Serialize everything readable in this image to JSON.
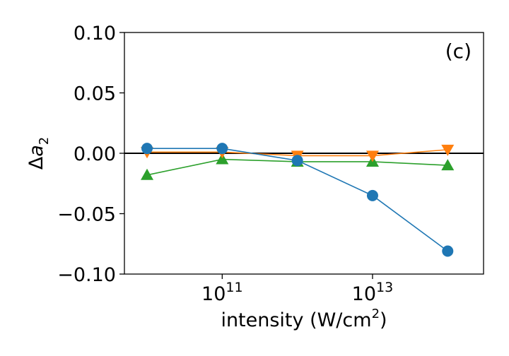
{
  "chart_data": {
    "type": "line",
    "panel_label": "(c)",
    "xlabel": {
      "text": "intensity (W/cm",
      "sup": "2",
      "tail": ")"
    },
    "ylabel": {
      "delta": "Δ",
      "var": "a",
      "sub": "2"
    },
    "xscale": "log",
    "xlim": [
      5000000000.0,
      300000000000000.0
    ],
    "ylim": [
      -0.1,
      0.1
    ],
    "yticks": [
      {
        "value": 0.1,
        "label": "0.10"
      },
      {
        "value": 0.05,
        "label": "0.05"
      },
      {
        "value": 0.0,
        "label": "0.00"
      },
      {
        "value": -0.05,
        "label": "−0.05"
      },
      {
        "value": -0.1,
        "label": "−0.10"
      }
    ],
    "xticks": [
      {
        "value": 100000000000.0,
        "base": "10",
        "exp": "11"
      },
      {
        "value": 10000000000000.0,
        "base": "10",
        "exp": "13"
      }
    ],
    "reference_line": 0,
    "x": [
      10000000000.0,
      100000000000.0,
      1000000000000.0,
      10000000000000.0,
      100000000000000.0
    ],
    "series": [
      {
        "marker": "circle",
        "color": "#1f77b4",
        "values": [
          0.004,
          0.004,
          -0.006,
          -0.035,
          -0.081
        ]
      },
      {
        "marker": "triangle-down",
        "color": "#ff7f0e",
        "values": [
          0.001,
          0.001,
          -0.002,
          -0.002,
          0.003
        ]
      },
      {
        "marker": "triangle-up",
        "color": "#2ca02c",
        "values": [
          -0.018,
          -0.005,
          -0.007,
          -0.007,
          -0.01
        ]
      }
    ]
  }
}
